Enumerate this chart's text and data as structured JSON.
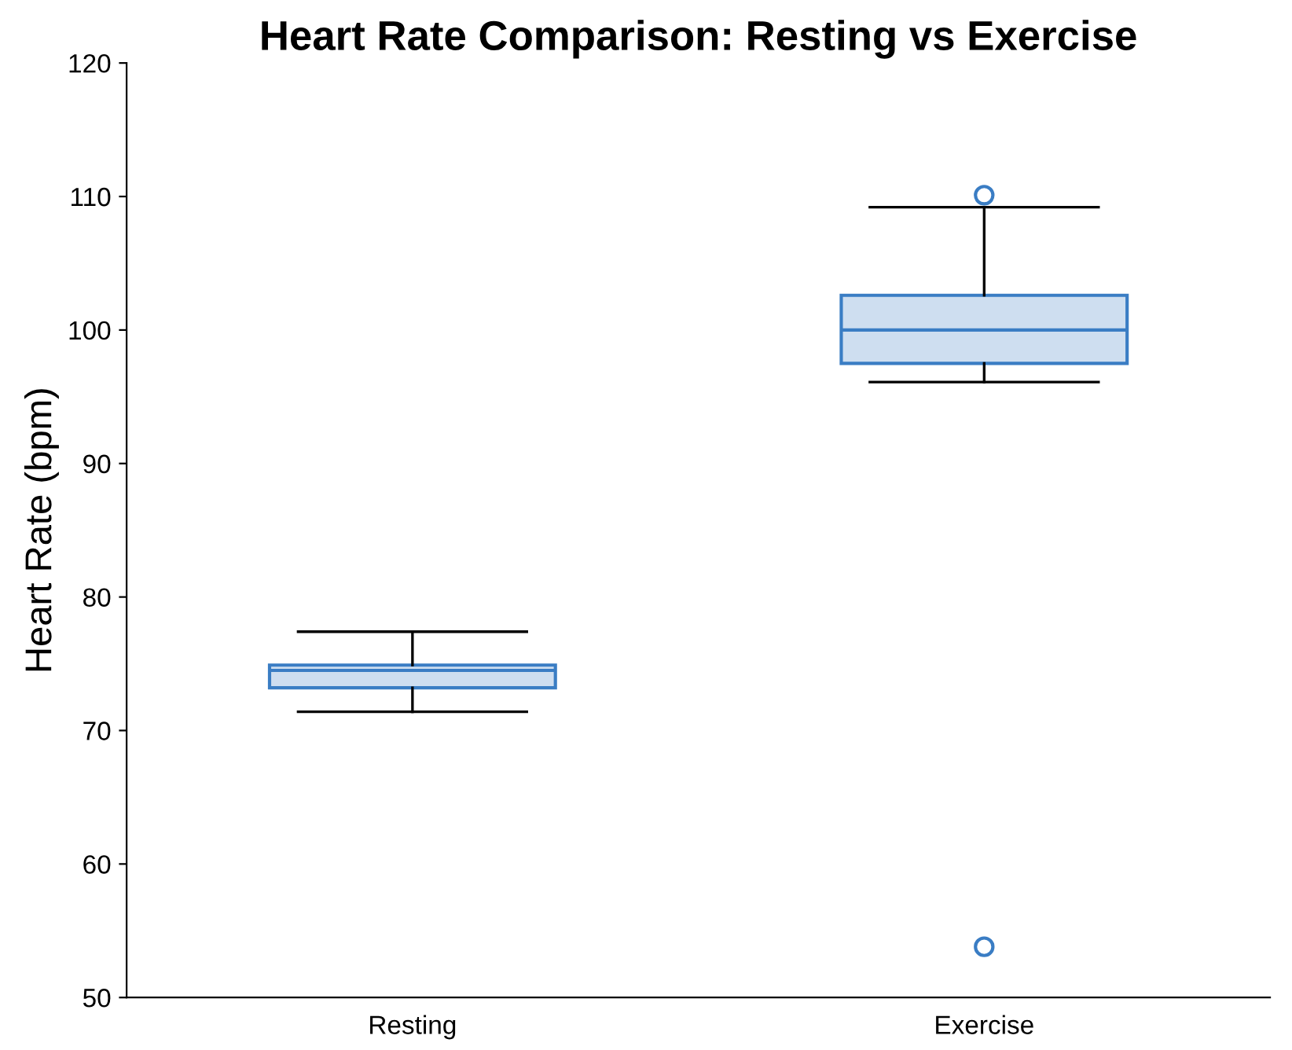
{
  "chart_data": {
    "type": "box",
    "title": "Heart Rate Comparison: Resting vs Exercise",
    "ylabel": "Heart Rate (bpm)",
    "categories": [
      "Resting",
      "Exercise"
    ],
    "series": [
      {
        "color": "#3a7dc4",
        "boxes": [
          {
            "low": 71.4,
            "q1": 73.2,
            "median": 74.5,
            "q3": 74.9,
            "high": 77.4
          },
          {
            "low": 96.1,
            "q1": 97.5,
            "median": 100,
            "q3": 102.6,
            "high": 109.2,
            "outliers": [
              110.1,
              53.8
            ]
          }
        ]
      }
    ],
    "ylim": [
      50,
      120
    ],
    "yticks": [
      50,
      60,
      70,
      80,
      90,
      100,
      110,
      120
    ],
    "grid": false,
    "legend": false
  }
}
